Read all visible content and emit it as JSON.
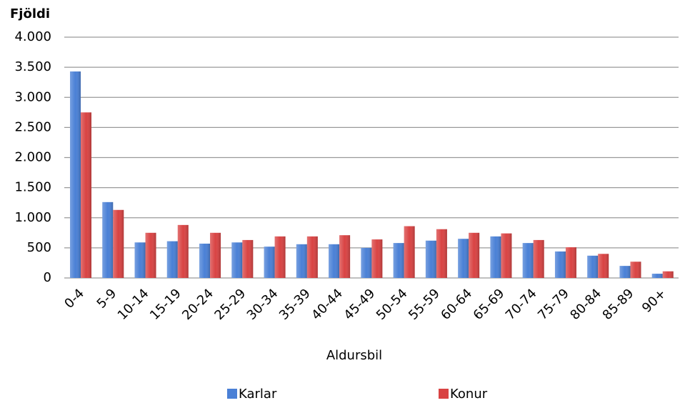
{
  "chart_data": {
    "type": "bar",
    "y_label": "Fjöldi",
    "x_label": "Aldursbil",
    "categories": [
      "0-4",
      "5-9",
      "10-14",
      "15-19",
      "20-24",
      "25-29",
      "30-34",
      "35-39",
      "40-44",
      "45-49",
      "50-54",
      "55-59",
      "60-64",
      "65-69",
      "70-74",
      "75-79",
      "80-84",
      "85-89",
      "90+"
    ],
    "series": [
      {
        "name": "Karlar",
        "color": "#4a80d6",
        "values": [
          3430,
          1260,
          590,
          610,
          570,
          590,
          520,
          560,
          560,
          500,
          580,
          620,
          650,
          690,
          580,
          440,
          370,
          200,
          70
        ]
      },
      {
        "name": "Konur",
        "color": "#d94343",
        "values": [
          2750,
          1130,
          750,
          880,
          750,
          630,
          690,
          690,
          710,
          640,
          860,
          810,
          750,
          740,
          630,
          510,
          400,
          270,
          110
        ]
      }
    ],
    "ylim": [
      0,
      4000
    ],
    "yticks": [
      0,
      500,
      {
        "value": 1000,
        "label": "1.000"
      },
      {
        "value": 1500,
        "label": "1.500"
      },
      {
        "value": 2000,
        "label": "2.000"
      },
      {
        "value": 2500,
        "label": "2.500"
      },
      {
        "value": 3000,
        "label": "3.000"
      },
      {
        "value": 3500,
        "label": "3.500"
      },
      {
        "value": 4000,
        "label": "4.000"
      }
    ],
    "grid": true,
    "legend": "bottom"
  }
}
